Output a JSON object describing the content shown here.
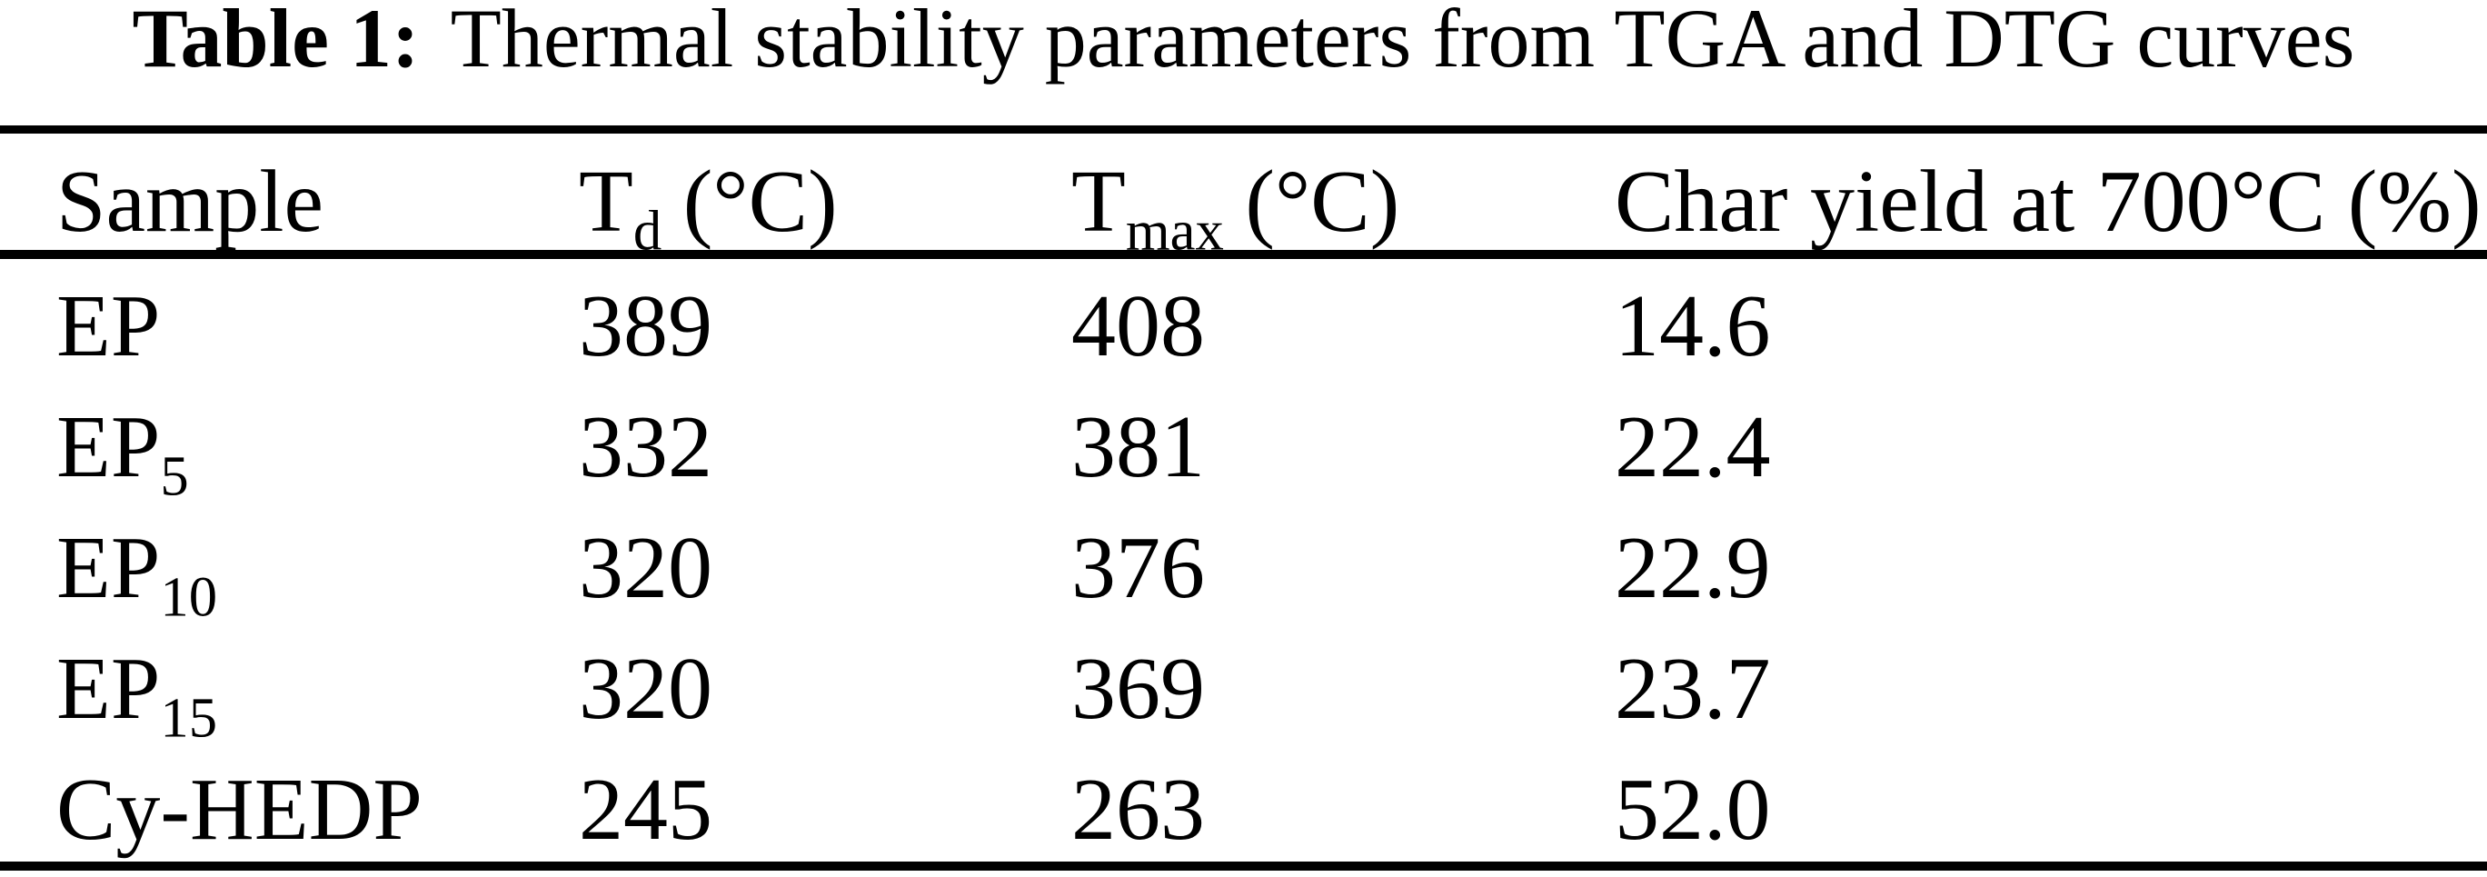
{
  "title": {
    "bold": "Table 1:",
    "rest": "Thermal stability parameters from TGA and DTG curves"
  },
  "table": {
    "header": {
      "sample": "Sample",
      "td_base": "T",
      "td_sub": "d",
      "td_unit": "(°C)",
      "tmax_base": "T",
      "tmax_sub": "max",
      "tmax_unit": "(°C)",
      "char_yield": "Char yield at 700°C (%)"
    },
    "rows": [
      {
        "sample_base": "EP",
        "sample_sub": "",
        "td": "389",
        "tmax": "408",
        "char_yield": "14.6"
      },
      {
        "sample_base": "EP",
        "sample_sub": "5",
        "td": "332",
        "tmax": "381",
        "char_yield": "22.4"
      },
      {
        "sample_base": "EP",
        "sample_sub": "10",
        "td": "320",
        "tmax": "376",
        "char_yield": "22.9"
      },
      {
        "sample_base": "EP",
        "sample_sub": "15",
        "td": "320",
        "tmax": "369",
        "char_yield": "23.7"
      },
      {
        "sample_base": "Cy-HEDP",
        "sample_sub": "",
        "td": "245",
        "tmax": "263",
        "char_yield": "52.0"
      }
    ]
  },
  "colors": {
    "background": "#ffffff",
    "text": "#000000",
    "rule": "#000000"
  }
}
